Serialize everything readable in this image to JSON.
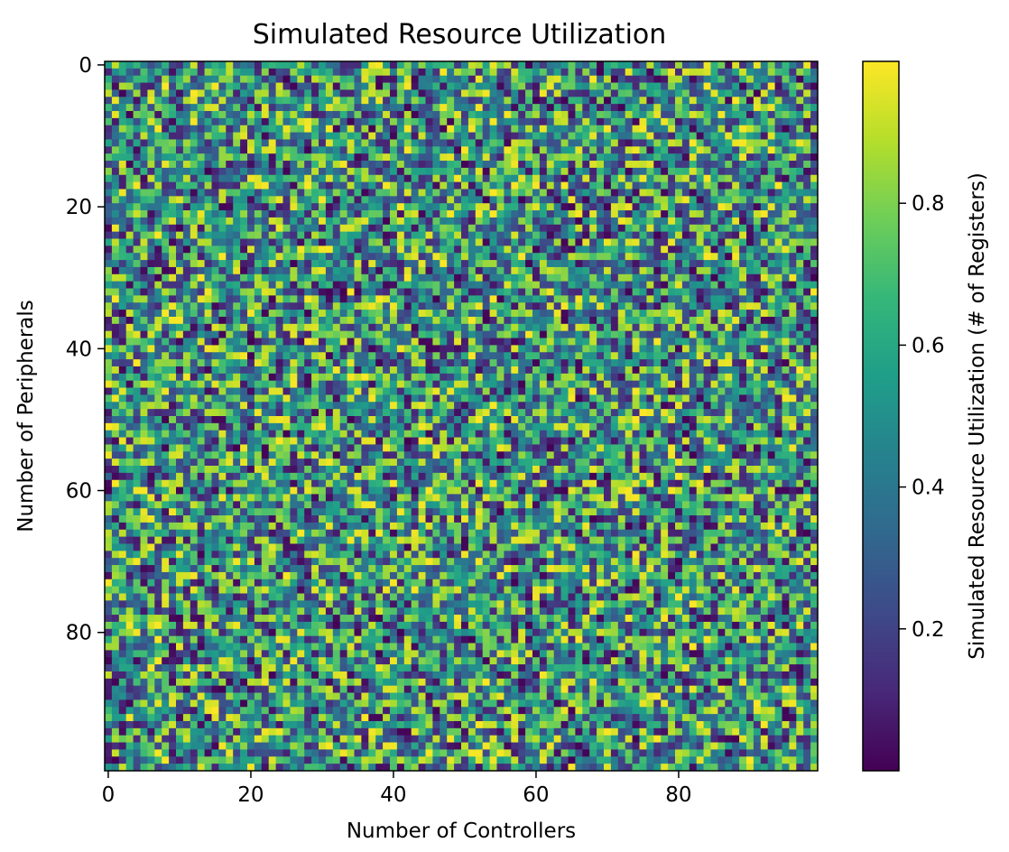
{
  "chart_data": {
    "type": "heatmap",
    "title": "Simulated Resource Utilization",
    "xlabel": "Number of Controllers",
    "ylabel": "Number of Peripherals",
    "colorbar_label": "Simulated Resource Utilization (# of Registers)",
    "colormap": "viridis",
    "colormap_stops": [
      "#440154",
      "#482878",
      "#3e4a89",
      "#31688e",
      "#26828e",
      "#1f9e89",
      "#35b779",
      "#6ece58",
      "#b5de2b",
      "#fde725"
    ],
    "grid_shape": {
      "rows": 100,
      "cols": 100
    },
    "x_range": [
      0,
      99
    ],
    "y_range": [
      0,
      99
    ],
    "y_inverted": true,
    "value_range": [
      0.0,
      1.0
    ],
    "value_distribution": "uniform random in [0, 1], no visible pattern",
    "x_ticks": [
      0,
      20,
      40,
      60,
      80
    ],
    "x_tick_labels": [
      "0",
      "20",
      "40",
      "60",
      "80"
    ],
    "y_ticks": [
      0,
      20,
      40,
      60,
      80
    ],
    "y_tick_labels": [
      "0",
      "20",
      "40",
      "60",
      "80"
    ],
    "colorbar_ticks": [
      0.2,
      0.4,
      0.6,
      0.8
    ],
    "colorbar_tick_labels": [
      "0.2",
      "0.4",
      "0.6",
      "0.8"
    ],
    "grid": false
  }
}
